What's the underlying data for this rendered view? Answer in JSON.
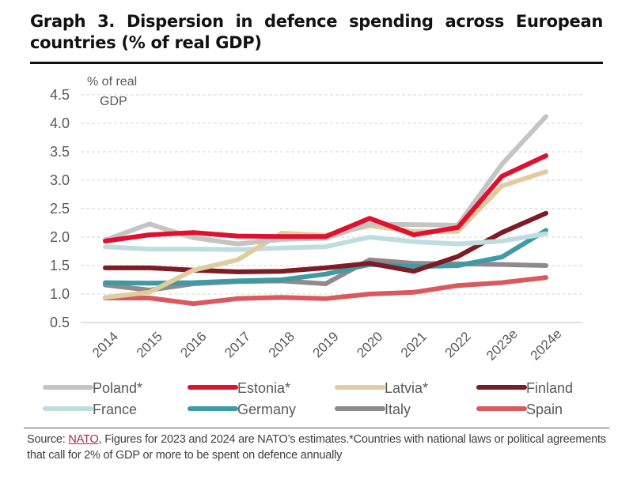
{
  "header": {
    "title": "Graph 3. Dispersion in defence spending across European countries (% of real GDP)"
  },
  "footer": {
    "source_prefix": "Source: ",
    "source_link": "NATO",
    "source_text": ", Figures for 2023 and 2024 are NATO’s estimates.*Countries with national laws or political agreements that call for 2% of GDP or more to be spent on defence annually"
  },
  "chart_data": {
    "type": "line",
    "title": "Graph 3. Dispersion in defence spending across European countries (% of real GDP)",
    "xlabel": "",
    "ylabel": "% of real GDP",
    "ylabel_line1": "% of real",
    "ylabel_line2": "GDP",
    "ylim": [
      0.5,
      4.5
    ],
    "yticks": [
      "0.5",
      "1.0",
      "1.5",
      "2.0",
      "2.5",
      "3.0",
      "3.5",
      "4.0",
      "4.5"
    ],
    "grid": true,
    "legend_position": "bottom",
    "x": [
      "2014",
      "2015",
      "2016",
      "2017",
      "2018",
      "2019",
      "2020",
      "2021",
      "2022",
      "2023e",
      "2024e"
    ],
    "series": [
      {
        "name": "Spain",
        "color": "#d9595f",
        "values": [
          0.93,
          0.93,
          0.83,
          0.92,
          0.94,
          0.92,
          1.0,
          1.03,
          1.15,
          1.2,
          1.29
        ]
      },
      {
        "name": "Italy",
        "color": "#8f8a8c",
        "values": [
          1.16,
          1.07,
          1.18,
          1.22,
          1.23,
          1.18,
          1.6,
          1.54,
          1.53,
          1.52,
          1.5
        ]
      },
      {
        "name": "Germany",
        "color": "#3e9aa4",
        "values": [
          1.2,
          1.19,
          1.2,
          1.23,
          1.25,
          1.35,
          1.52,
          1.48,
          1.5,
          1.65,
          2.12
        ]
      },
      {
        "name": "Finland",
        "color": "#7d1c24",
        "values": [
          1.46,
          1.46,
          1.42,
          1.39,
          1.4,
          1.46,
          1.54,
          1.4,
          1.66,
          2.08,
          2.42
        ]
      },
      {
        "name": "France",
        "color": "#bfdde0",
        "values": [
          1.83,
          1.79,
          1.79,
          1.78,
          1.81,
          1.83,
          2.0,
          1.92,
          1.88,
          1.93,
          2.06
        ]
      },
      {
        "name": "Latvia*",
        "color": "#e0cc9f",
        "values": [
          0.94,
          1.03,
          1.42,
          1.6,
          2.07,
          2.03,
          2.2,
          2.1,
          2.1,
          2.9,
          3.15
        ]
      },
      {
        "name": "Poland*",
        "color": "#c4c4c4",
        "values": [
          1.95,
          2.23,
          1.99,
          1.88,
          1.96,
          1.98,
          2.23,
          2.22,
          2.21,
          3.28,
          4.12
        ]
      },
      {
        "name": "Estonia*",
        "color": "#e0102f",
        "values": [
          1.93,
          2.04,
          2.08,
          2.02,
          2.01,
          2.01,
          2.33,
          2.04,
          2.17,
          3.07,
          3.43
        ]
      }
    ],
    "legend": [
      {
        "name": "Poland*",
        "color": "#c4c4c4"
      },
      {
        "name": "Estonia*",
        "color": "#e0102f"
      },
      {
        "name": "Latvia*",
        "color": "#e0cc9f"
      },
      {
        "name": "Finland",
        "color": "#7d1c24"
      },
      {
        "name": "France",
        "color": "#bfdde0"
      },
      {
        "name": "Germany",
        "color": "#3e9aa4"
      },
      {
        "name": "Italy",
        "color": "#8f8a8c"
      },
      {
        "name": "Spain",
        "color": "#d9595f"
      }
    ]
  }
}
